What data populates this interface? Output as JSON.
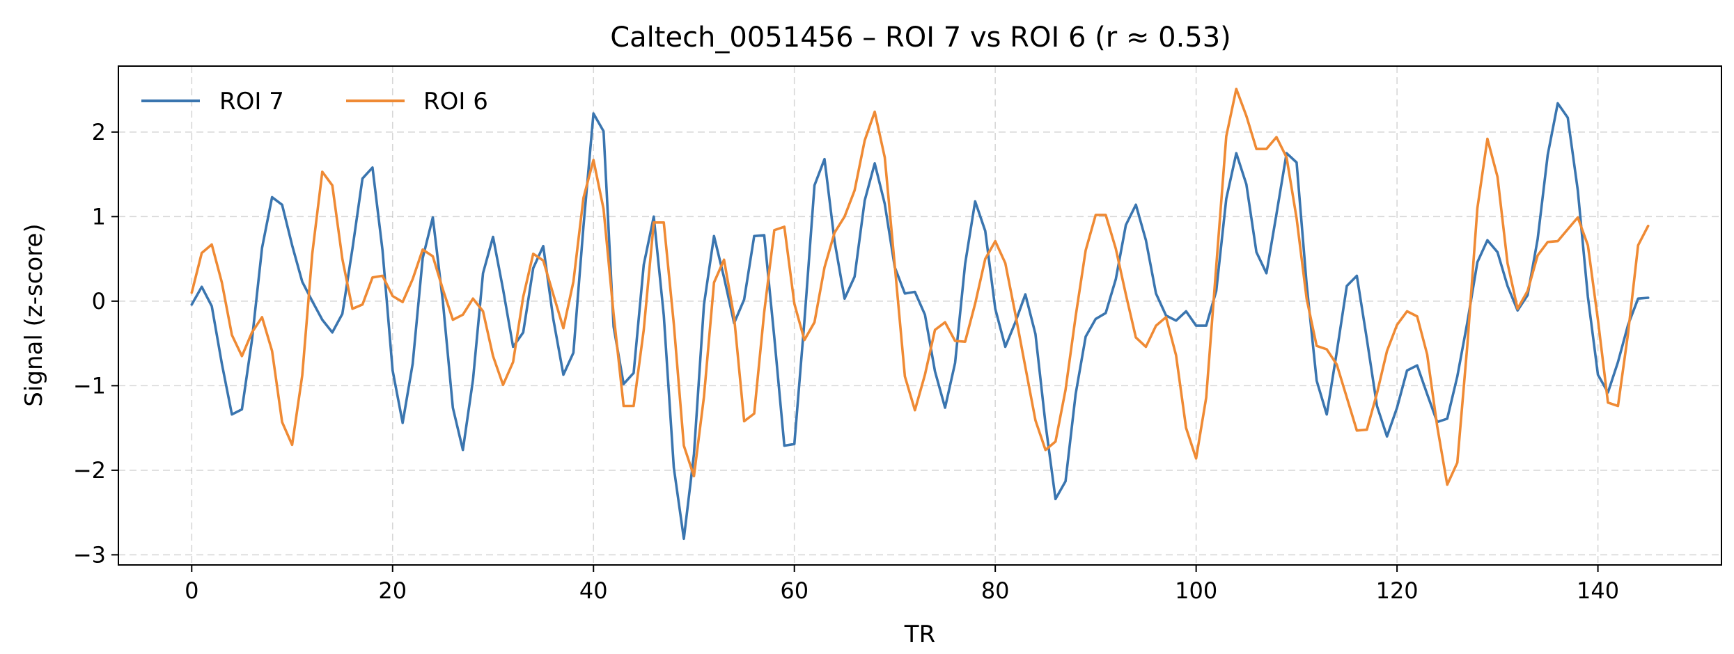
{
  "chart_data": {
    "type": "line",
    "title": "Caltech_0051456 – ROI 7 vs ROI 6  (r ≈ 0.53)",
    "xlabel": "TR",
    "ylabel": "Signal (z-score)",
    "xlim": [
      -7.3,
      152.3
    ],
    "ylim": [
      -3.12,
      2.78
    ],
    "xticks": [
      0,
      20,
      40,
      60,
      80,
      100,
      120,
      140
    ],
    "yticks": [
      -3,
      -2,
      -1,
      0,
      1,
      2
    ],
    "grid": true,
    "legend": "upper-left",
    "series": [
      {
        "name": "ROI 7",
        "color": "#3a75af",
        "values": [
          -0.04,
          0.17,
          -0.06,
          -0.74,
          -1.34,
          -1.28,
          -0.46,
          0.63,
          1.23,
          1.14,
          0.66,
          0.23,
          0.0,
          -0.22,
          -0.37,
          -0.15,
          0.62,
          1.45,
          1.58,
          0.6,
          -0.82,
          -1.44,
          -0.74,
          0.51,
          0.99,
          0.0,
          -1.26,
          -1.76,
          -0.93,
          0.33,
          0.76,
          0.14,
          -0.54,
          -0.37,
          0.39,
          0.65,
          -0.21,
          -0.87,
          -0.61,
          0.88,
          2.22,
          2.01,
          -0.3,
          -0.98,
          -0.85,
          0.43,
          1.0,
          -0.17,
          -1.97,
          -2.81,
          -1.81,
          -0.04,
          0.77,
          0.28,
          -0.26,
          0.02,
          0.77,
          0.78,
          -0.43,
          -1.71,
          -1.69,
          -0.24,
          1.37,
          1.68,
          0.71,
          0.03,
          0.29,
          1.19,
          1.63,
          1.15,
          0.4,
          0.09,
          0.11,
          -0.16,
          -0.83,
          -1.26,
          -0.73,
          0.44,
          1.18,
          0.83,
          -0.09,
          -0.54,
          -0.25,
          0.08,
          -0.39,
          -1.45,
          -2.34,
          -2.13,
          -1.1,
          -0.42,
          -0.21,
          -0.14,
          0.26,
          0.9,
          1.14,
          0.72,
          0.09,
          -0.17,
          -0.23,
          -0.12,
          -0.29,
          -0.29,
          0.12,
          1.21,
          1.75,
          1.38,
          0.58,
          0.33,
          1.03,
          1.75,
          1.64,
          0.2,
          -0.94,
          -1.34,
          -0.6,
          0.18,
          0.3,
          -0.45,
          -1.24,
          -1.6,
          -1.26,
          -0.82,
          -0.76,
          -1.1,
          -1.43,
          -1.39,
          -0.89,
          -0.25,
          0.46,
          0.72,
          0.58,
          0.18,
          -0.11,
          0.07,
          0.73,
          1.73,
          2.34,
          2.17,
          1.31,
          0.05,
          -0.87,
          -1.08,
          -0.72,
          -0.28,
          0.03,
          0.04
        ]
      },
      {
        "name": "ROI 6",
        "color": "#ef8a34",
        "values": [
          0.1,
          0.57,
          0.67,
          0.22,
          -0.4,
          -0.65,
          -0.37,
          -0.19,
          -0.59,
          -1.43,
          -1.7,
          -0.88,
          0.56,
          1.53,
          1.37,
          0.5,
          -0.09,
          -0.04,
          0.28,
          0.3,
          0.06,
          -0.01,
          0.26,
          0.61,
          0.53,
          0.14,
          -0.22,
          -0.16,
          0.03,
          -0.12,
          -0.65,
          -0.99,
          -0.72,
          0.05,
          0.56,
          0.48,
          0.08,
          -0.32,
          0.23,
          1.22,
          1.67,
          1.09,
          -0.15,
          -1.24,
          -1.24,
          -0.34,
          0.93,
          0.93,
          -0.27,
          -1.71,
          -2.07,
          -1.13,
          0.22,
          0.49,
          -0.19,
          -1.42,
          -1.33,
          -0.13,
          0.84,
          0.88,
          -0.03,
          -0.46,
          -0.25,
          0.4,
          0.81,
          1.0,
          1.31,
          1.9,
          2.24,
          1.7,
          0.42,
          -0.89,
          -1.29,
          -0.87,
          -0.34,
          -0.25,
          -0.47,
          -0.48,
          -0.03,
          0.5,
          0.71,
          0.45,
          -0.15,
          -0.78,
          -1.41,
          -1.76,
          -1.66,
          -1.05,
          -0.18,
          0.6,
          1.02,
          1.02,
          0.62,
          0.08,
          -0.43,
          -0.54,
          -0.29,
          -0.19,
          -0.64,
          -1.5,
          -1.86,
          -1.14,
          0.41,
          1.95,
          2.51,
          2.19,
          1.8,
          1.8,
          1.94,
          1.7,
          0.98,
          0.03,
          -0.53,
          -0.57,
          -0.75,
          -1.14,
          -1.53,
          -1.52,
          -1.09,
          -0.59,
          -0.28,
          -0.12,
          -0.18,
          -0.63,
          -1.48,
          -2.17,
          -1.91,
          -0.52,
          1.1,
          1.92,
          1.47,
          0.45,
          -0.09,
          0.12,
          0.54,
          0.7,
          0.71,
          0.85,
          0.99,
          0.66,
          -0.22,
          -1.2,
          -1.24,
          -0.38,
          0.66,
          0.89
        ]
      }
    ]
  }
}
